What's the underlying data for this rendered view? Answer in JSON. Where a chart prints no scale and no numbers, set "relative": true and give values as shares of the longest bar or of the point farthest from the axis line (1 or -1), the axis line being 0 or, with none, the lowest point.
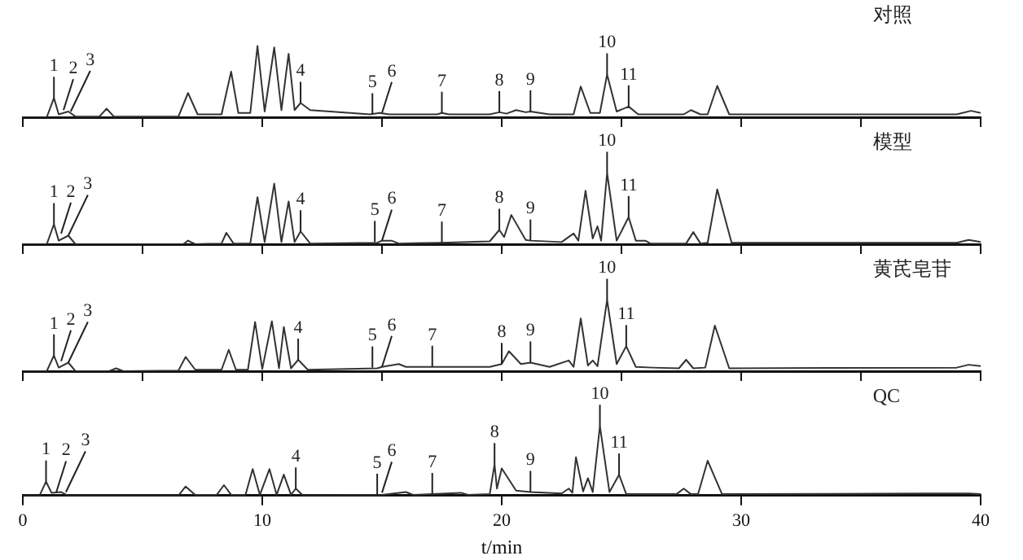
{
  "chart_data": [
    {
      "type": "line",
      "relative": true,
      "xlim": [
        0,
        40
      ],
      "xticks": [
        0,
        5,
        10,
        15,
        20,
        25,
        30,
        35,
        40
      ],
      "tick_labels": false,
      "marker": "none",
      "line_style": "solid",
      "series": [
        {
          "color": "#333333",
          "x": [
            0,
            1.0,
            1.3,
            1.5,
            1.9,
            2.2,
            3.2,
            3.5,
            3.8,
            6.5,
            6.9,
            7.3,
            8.3,
            8.7,
            9.0,
            9.5,
            9.8,
            10.1,
            10.5,
            10.8,
            11.1,
            11.35,
            11.6,
            12.0,
            14.5,
            14.9,
            15.3,
            17.3,
            17.5,
            17.8,
            19.5,
            19.9,
            20.2,
            20.6,
            21.0,
            21.2,
            22.0,
            23.0,
            23.3,
            23.7,
            24.1,
            24.4,
            24.8,
            25.3,
            25.7,
            27.6,
            27.9,
            28.3,
            28.6,
            29.0,
            29.5,
            39.0,
            39.6,
            40
          ],
          "values": [
            0,
            0,
            0.27,
            0.04,
            0.08,
            0.01,
            0.01,
            0.12,
            0.01,
            0.01,
            0.34,
            0.04,
            0.04,
            0.64,
            0.06,
            0.06,
            1.0,
            0.08,
            0.98,
            0.1,
            0.89,
            0.1,
            0.2,
            0.1,
            0.04,
            0.06,
            0.04,
            0.04,
            0.06,
            0.04,
            0.04,
            0.07,
            0.05,
            0.1,
            0.07,
            0.08,
            0.04,
            0.04,
            0.43,
            0.06,
            0.06,
            0.6,
            0.08,
            0.15,
            0.04,
            0.04,
            0.1,
            0.04,
            0.04,
            0.44,
            0.04,
            0.04,
            0.09,
            0.06
          ]
        }
      ],
      "annotations": [
        "对照",
        {
          "text": "1",
          "x": 1.3,
          "y": 0.27
        },
        {
          "text": "2",
          "x": 1.7,
          "y": 0.1
        },
        {
          "text": "3",
          "x": 2.0,
          "y": 0.08
        },
        {
          "text": "4",
          "x": 11.6,
          "y": 0.2
        },
        {
          "text": "5",
          "x": 14.6,
          "y": 0.04
        },
        {
          "text": "6",
          "x": 15.0,
          "y": 0.06
        },
        {
          "text": "7",
          "x": 17.5,
          "y": 0.06
        },
        {
          "text": "8",
          "x": 19.9,
          "y": 0.07
        },
        {
          "text": "9",
          "x": 21.2,
          "y": 0.08
        },
        {
          "text": "10",
          "x": 24.4,
          "y": 0.6
        },
        {
          "text": "11",
          "x": 25.3,
          "y": 0.15
        }
      ]
    },
    {
      "type": "line",
      "relative": true,
      "xlim": [
        0,
        40
      ],
      "xticks": [
        0,
        5,
        10,
        15,
        20,
        25,
        30,
        35,
        40
      ],
      "tick_labels": false,
      "marker": "none",
      "line_style": "solid",
      "series": [
        {
          "color": "#333333",
          "x": [
            0,
            1.0,
            1.3,
            1.5,
            1.9,
            2.2,
            6.7,
            6.9,
            7.2,
            8.3,
            8.5,
            8.8,
            9.5,
            9.8,
            10.1,
            10.5,
            10.8,
            11.1,
            11.35,
            11.6,
            12.0,
            14.8,
            15.0,
            15.4,
            15.7,
            17.5,
            19.5,
            19.9,
            20.1,
            20.4,
            21.0,
            21.2,
            22.5,
            23.0,
            23.2,
            23.5,
            23.8,
            24.0,
            24.15,
            24.4,
            24.8,
            25.3,
            25.6,
            26.0,
            26.2,
            27.7,
            28.0,
            28.3,
            28.6,
            29.0,
            29.6,
            39.0,
            39.5,
            40
          ],
          "values": [
            0,
            0,
            0.28,
            0.05,
            0.12,
            0,
            0,
            0.05,
            0,
            0.01,
            0.16,
            0.01,
            0.01,
            0.66,
            0.03,
            0.85,
            0.03,
            0.6,
            0.03,
            0.18,
            0.01,
            0.02,
            0.05,
            0.05,
            0.01,
            0.02,
            0.04,
            0.2,
            0.1,
            0.41,
            0.06,
            0.05,
            0.03,
            0.15,
            0.05,
            0.75,
            0.08,
            0.25,
            0.05,
            1.0,
            0.05,
            0.38,
            0.05,
            0.05,
            0.01,
            0.01,
            0.17,
            0.01,
            0.02,
            0.77,
            0.02,
            0.02,
            0.06,
            0.03
          ]
        }
      ],
      "annotations": [
        "模型",
        {
          "text": "1",
          "x": 1.3,
          "y": 0.28
        },
        {
          "text": "2",
          "x": 1.6,
          "y": 0.15
        },
        {
          "text": "3",
          "x": 1.9,
          "y": 0.12
        },
        {
          "text": "4",
          "x": 11.6,
          "y": 0.18
        },
        {
          "text": "5",
          "x": 14.7,
          "y": 0.03
        },
        {
          "text": "6",
          "x": 15.0,
          "y": 0.05
        },
        {
          "text": "7",
          "x": 17.5,
          "y": 0.02
        },
        {
          "text": "8",
          "x": 19.9,
          "y": 0.2
        },
        {
          "text": "9",
          "x": 21.2,
          "y": 0.05
        },
        {
          "text": "10",
          "x": 24.4,
          "y": 1.0
        },
        {
          "text": "11",
          "x": 25.3,
          "y": 0.38
        }
      ]
    },
    {
      "type": "line",
      "relative": true,
      "xlim": [
        0,
        40
      ],
      "xticks": [
        0,
        5,
        10,
        15,
        20,
        25,
        30,
        35,
        40
      ],
      "tick_labels": false,
      "marker": "none",
      "line_style": "solid",
      "series": [
        {
          "color": "#333333",
          "x": [
            0,
            1.0,
            1.3,
            1.5,
            1.9,
            2.2,
            3.6,
            3.9,
            4.2,
            6.5,
            6.8,
            7.2,
            8.3,
            8.6,
            8.9,
            9.4,
            9.7,
            10.0,
            10.4,
            10.7,
            10.9,
            11.2,
            11.5,
            11.9,
            14.8,
            15.0,
            15.7,
            16.0,
            17.1,
            19.5,
            20.0,
            20.3,
            20.8,
            21.2,
            22.0,
            22.8,
            23.0,
            23.3,
            23.6,
            23.8,
            24.0,
            24.4,
            24.8,
            25.2,
            25.6,
            26.3,
            27.4,
            27.7,
            28.0,
            28.5,
            28.9,
            29.5,
            39.0,
            39.5,
            40
          ],
          "values": [
            0,
            0,
            0.22,
            0.05,
            0.12,
            0,
            0,
            0.04,
            0,
            0.01,
            0.2,
            0.02,
            0.02,
            0.3,
            0.02,
            0.02,
            0.69,
            0.03,
            0.7,
            0.04,
            0.62,
            0.04,
            0.16,
            0.02,
            0.04,
            0.06,
            0.1,
            0.06,
            0.06,
            0.06,
            0.1,
            0.28,
            0.1,
            0.12,
            0.06,
            0.15,
            0.06,
            0.74,
            0.08,
            0.15,
            0.07,
            1.0,
            0.1,
            0.35,
            0.06,
            0.05,
            0.04,
            0.16,
            0.04,
            0.05,
            0.64,
            0.04,
            0.05,
            0.09,
            0.07
          ]
        }
      ],
      "annotations": [
        "黄芪皂苷",
        {
          "text": "1",
          "x": 1.3,
          "y": 0.22
        },
        {
          "text": "2",
          "x": 1.6,
          "y": 0.14
        },
        {
          "text": "3",
          "x": 1.9,
          "y": 0.12
        },
        {
          "text": "4",
          "x": 11.5,
          "y": 0.16
        },
        {
          "text": "5",
          "x": 14.6,
          "y": 0.05
        },
        {
          "text": "6",
          "x": 15.0,
          "y": 0.06
        },
        {
          "text": "7",
          "x": 17.1,
          "y": 0.06
        },
        {
          "text": "8",
          "x": 20.0,
          "y": 0.1
        },
        {
          "text": "9",
          "x": 21.2,
          "y": 0.12
        },
        {
          "text": "10",
          "x": 24.4,
          "y": 1.0
        },
        {
          "text": "11",
          "x": 25.2,
          "y": 0.35
        }
      ]
    },
    {
      "type": "line",
      "relative": true,
      "xlim": [
        0,
        40
      ],
      "xticks": [
        0,
        10,
        20,
        30,
        40
      ],
      "xlabel": "t/min",
      "marker": "none",
      "line_style": "solid",
      "series": [
        {
          "color": "#333333",
          "x": [
            0,
            0.7,
            0.97,
            1.2,
            1.6,
            1.9,
            6.5,
            6.8,
            7.2,
            8.1,
            8.4,
            8.7,
            9.3,
            9.6,
            9.9,
            10.3,
            10.6,
            10.9,
            11.2,
            11.4,
            11.7,
            15.0,
            16.0,
            16.3,
            17.1,
            18.3,
            18.6,
            19.5,
            19.7,
            19.8,
            20.0,
            20.6,
            21.2,
            22.5,
            22.8,
            22.95,
            23.1,
            23.4,
            23.6,
            23.8,
            24.1,
            24.5,
            24.9,
            25.2,
            27.3,
            27.6,
            27.9,
            28.2,
            28.6,
            29.2,
            37.8,
            39.5,
            40
          ],
          "values": [
            0,
            0,
            0.2,
            0.04,
            0.05,
            0,
            0,
            0.13,
            0.01,
            0.01,
            0.15,
            0.01,
            0.01,
            0.38,
            0.01,
            0.38,
            0.01,
            0.3,
            0.01,
            0.1,
            0,
            0.01,
            0.05,
            0.01,
            0.02,
            0.04,
            0.01,
            0.02,
            0.45,
            0.1,
            0.39,
            0.07,
            0.05,
            0.03,
            0.1,
            0.04,
            0.55,
            0.06,
            0.25,
            0.05,
            1.0,
            0.05,
            0.3,
            0.02,
            0.02,
            0.1,
            0.02,
            0.02,
            0.5,
            0.02,
            0.03,
            0.03,
            0.02
          ]
        }
      ],
      "annotations": [
        "QC",
        {
          "text": "1",
          "x": 0.97,
          "y": 0.2
        },
        {
          "text": "2",
          "x": 1.4,
          "y": 0.05
        },
        {
          "text": "3",
          "x": 1.8,
          "y": 0.05
        },
        {
          "text": "4",
          "x": 11.4,
          "y": 0.1
        },
        {
          "text": "5",
          "x": 14.8,
          "y": 0.01
        },
        {
          "text": "6",
          "x": 15.0,
          "y": 0.04
        },
        {
          "text": "7",
          "x": 17.1,
          "y": 0.02
        },
        {
          "text": "8",
          "x": 19.7,
          "y": 0.45
        },
        {
          "text": "9",
          "x": 21.2,
          "y": 0.05
        },
        {
          "text": "10",
          "x": 24.1,
          "y": 1.0
        },
        {
          "text": "11",
          "x": 24.9,
          "y": 0.3
        }
      ]
    }
  ]
}
